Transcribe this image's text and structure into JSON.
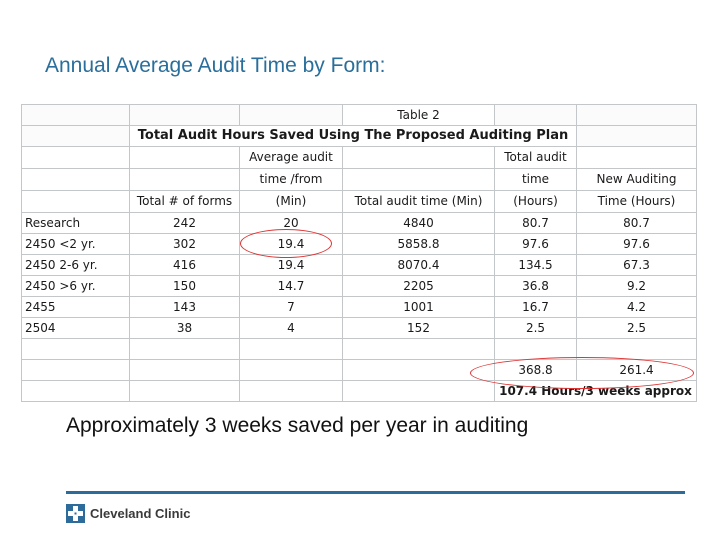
{
  "title": "Annual Average Audit Time by Form:",
  "table": {
    "caption": "Table 2",
    "heading": "Total Audit Hours Saved Using The Proposed Auditing Plan",
    "columns": [
      [
        "",
        "",
        "",
        ""
      ],
      [
        "",
        "",
        "",
        "Total # of forms"
      ],
      [
        "",
        "Average audit",
        "time /from",
        "(Min)"
      ],
      [
        "",
        "",
        "",
        "Total audit time (Min)"
      ],
      [
        "",
        "Total audit",
        "time",
        "(Hours)"
      ],
      [
        "",
        "",
        "New Auditing",
        "Time (Hours)"
      ]
    ],
    "rows": [
      [
        "Research",
        "242",
        "20",
        "4840",
        "80.7",
        "80.7"
      ],
      [
        "2450 <2 yr.",
        "302",
        "19.4",
        "5858.8",
        "97.6",
        "97.6"
      ],
      [
        "2450 2-6 yr.",
        "416",
        "19.4",
        "8070.4",
        "134.5",
        "67.3"
      ],
      [
        "2450 >6 yr.",
        "150",
        "14.7",
        "2205",
        "36.8",
        "9.2"
      ],
      [
        "2455",
        "143",
        "7",
        "1001",
        "16.7",
        "4.2"
      ],
      [
        "2504",
        "38",
        "4",
        "152",
        "2.5",
        "2.5"
      ]
    ],
    "totals": [
      "368.8",
      "261.4"
    ],
    "savings": "107.4 Hours/3 weeks approx"
  },
  "summary": "Approximately 3 weeks saved per year in auditing",
  "footer": {
    "logo_text": "Cleveland Clinic",
    "logo_color": "#2d6b9a"
  }
}
